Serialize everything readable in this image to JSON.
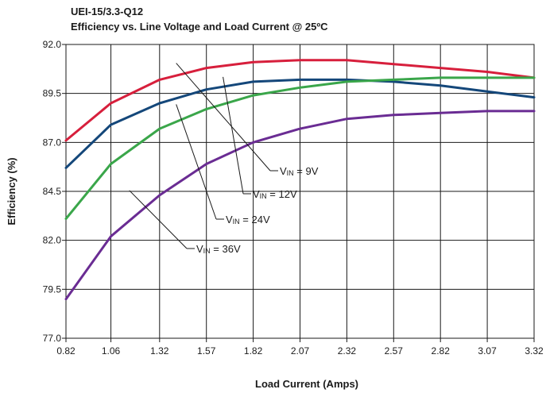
{
  "chart_data": {
    "type": "line",
    "title": "UEI-15/3.3-Q12",
    "subtitle": "Efficiency vs. Line Voltage and Load Current @ 25ºC",
    "xlabel": "Load Current (Amps)",
    "ylabel": "Efficiency (%)",
    "x": [
      0.82,
      1.06,
      1.32,
      1.57,
      1.82,
      2.07,
      2.32,
      2.57,
      2.82,
      3.07,
      3.32
    ],
    "x_tick_labels": [
      "0.82",
      "1.06",
      "1.32",
      "1.57",
      "1.82",
      "2.07",
      "2.32",
      "2.57",
      "2.82",
      "3.07",
      "3.32"
    ],
    "y_ticks": [
      "92.0",
      "89.5",
      "87.0",
      "84.5",
      "82.0",
      "79.5",
      "77.0"
    ],
    "ylim": [
      77.0,
      92.0
    ],
    "grid": true,
    "series": [
      {
        "name": "VIN = 9V",
        "label_parts": [
          "V",
          "IN",
          " = 9V"
        ],
        "color": "#d71f3c",
        "values": [
          87.1,
          89.0,
          90.2,
          90.8,
          91.1,
          91.2,
          91.2,
          91.0,
          90.8,
          90.6,
          90.3
        ]
      },
      {
        "name": "VIN = 12V",
        "label_parts": [
          "V",
          "IN",
          " = 12V"
        ],
        "color": "#14477a",
        "values": [
          85.7,
          87.9,
          89.0,
          89.7,
          90.1,
          90.2,
          90.2,
          90.1,
          89.9,
          89.6,
          89.3
        ]
      },
      {
        "name": "VIN = 24V",
        "label_parts": [
          "V",
          "IN",
          " = 24V"
        ],
        "color": "#3aa64a",
        "values": [
          83.1,
          85.9,
          87.7,
          88.7,
          89.4,
          89.8,
          90.1,
          90.2,
          90.3,
          90.3,
          90.3
        ]
      },
      {
        "name": "VIN = 36V",
        "label_parts": [
          "V",
          "IN",
          " = 36V"
        ],
        "color": "#6a2c93",
        "values": [
          79.0,
          82.2,
          84.3,
          85.9,
          87.0,
          87.7,
          88.2,
          88.4,
          88.5,
          88.6,
          88.6
        ]
      }
    ]
  }
}
